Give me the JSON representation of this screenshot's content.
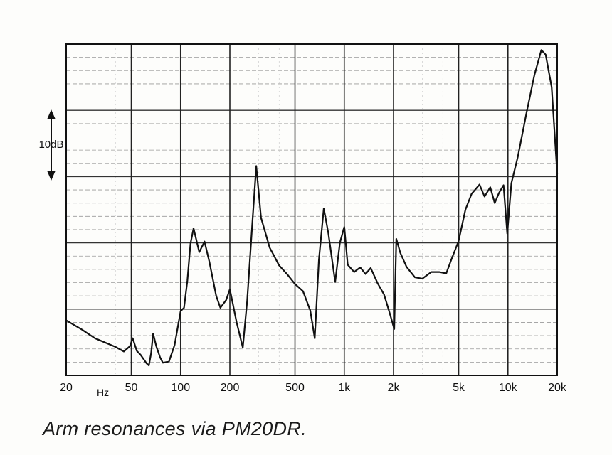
{
  "caption": "Arm resonances via PM20DR.",
  "chart_data": {
    "type": "line",
    "title": "",
    "xlabel": "Hz",
    "ylabel": "",
    "x_scale": "log",
    "xlim": [
      20,
      20000
    ],
    "ylim": [
      0,
      50
    ],
    "grid": true,
    "scale_marker": "10dB",
    "x_ticks": [
      {
        "value": 20,
        "label": "20"
      },
      {
        "value": 50,
        "label": "50"
      },
      {
        "value": 100,
        "label": "100"
      },
      {
        "value": 200,
        "label": "200"
      },
      {
        "value": 500,
        "label": "500"
      },
      {
        "value": 1000,
        "label": "1k"
      },
      {
        "value": 2000,
        "label": "2k"
      },
      {
        "value": 5000,
        "label": "5k"
      },
      {
        "value": 10000,
        "label": "10k"
      },
      {
        "value": 20000,
        "label": "20k"
      }
    ],
    "series": [
      {
        "color": "#111111",
        "points": [
          [
            20,
            8.3
          ],
          [
            25,
            6.9
          ],
          [
            30,
            5.6
          ],
          [
            40,
            4.3
          ],
          [
            45,
            3.6
          ],
          [
            49,
            4.4
          ],
          [
            51,
            5.6
          ],
          [
            54,
            3.7
          ],
          [
            57,
            3.1
          ],
          [
            62,
            1.8
          ],
          [
            64,
            1.5
          ],
          [
            66,
            3.3
          ],
          [
            68,
            6.3
          ],
          [
            71,
            4.4
          ],
          [
            75,
            2.7
          ],
          [
            78,
            1.9
          ],
          [
            85,
            2.1
          ],
          [
            92,
            4.6
          ],
          [
            100,
            9.7
          ],
          [
            105,
            10.2
          ],
          [
            110,
            14.3
          ],
          [
            115,
            19.9
          ],
          [
            120,
            22.2
          ],
          [
            130,
            18.6
          ],
          [
            140,
            20.2
          ],
          [
            150,
            17.1
          ],
          [
            165,
            12.0
          ],
          [
            175,
            10.2
          ],
          [
            190,
            11.4
          ],
          [
            200,
            13.0
          ],
          [
            220,
            8.0
          ],
          [
            240,
            4.2
          ],
          [
            255,
            11.2
          ],
          [
            275,
            23.3
          ],
          [
            290,
            31.6
          ],
          [
            310,
            23.8
          ],
          [
            350,
            19.3
          ],
          [
            400,
            16.6
          ],
          [
            450,
            15.2
          ],
          [
            500,
            13.8
          ],
          [
            560,
            12.7
          ],
          [
            620,
            9.8
          ],
          [
            660,
            5.6
          ],
          [
            700,
            17.4
          ],
          [
            750,
            25.2
          ],
          [
            800,
            21.4
          ],
          [
            880,
            14.1
          ],
          [
            940,
            20.0
          ],
          [
            1000,
            22.4
          ],
          [
            1050,
            16.7
          ],
          [
            1150,
            15.6
          ],
          [
            1250,
            16.3
          ],
          [
            1350,
            15.3
          ],
          [
            1450,
            16.2
          ],
          [
            1600,
            13.9
          ],
          [
            1750,
            12.2
          ],
          [
            1900,
            9.3
          ],
          [
            2020,
            7.0
          ],
          [
            2080,
            20.6
          ],
          [
            2200,
            18.5
          ],
          [
            2400,
            16.4
          ],
          [
            2700,
            14.8
          ],
          [
            3000,
            14.6
          ],
          [
            3400,
            15.6
          ],
          [
            3800,
            15.6
          ],
          [
            4200,
            15.4
          ],
          [
            4500,
            17.4
          ],
          [
            5000,
            20.3
          ],
          [
            5500,
            25.0
          ],
          [
            6000,
            27.4
          ],
          [
            6700,
            28.8
          ],
          [
            7200,
            27.0
          ],
          [
            7800,
            28.4
          ],
          [
            8300,
            26.0
          ],
          [
            8800,
            27.5
          ],
          [
            9400,
            28.7
          ],
          [
            9900,
            21.4
          ],
          [
            10500,
            29.0
          ],
          [
            11500,
            33.0
          ],
          [
            13000,
            39.7
          ],
          [
            14500,
            45.3
          ],
          [
            16000,
            49.1
          ],
          [
            17000,
            48.4
          ],
          [
            18500,
            43.5
          ],
          [
            20000,
            30.4
          ]
        ]
      }
    ]
  }
}
